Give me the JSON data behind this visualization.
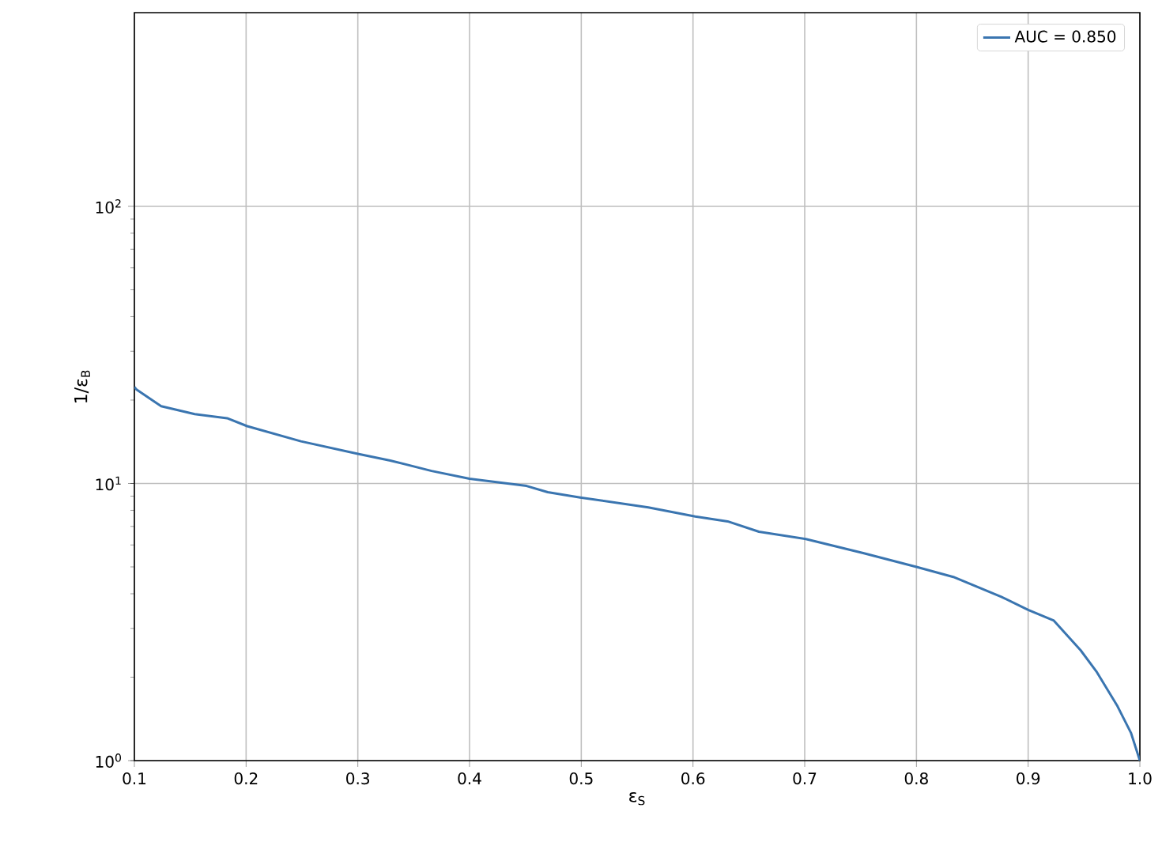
{
  "chart_data": {
    "type": "line",
    "xlabel": "ε$_{S}$",
    "ylabel": "1/ε$_{B}$",
    "log": "y",
    "grid": true,
    "legend": "top right",
    "xlim": [
      0.1,
      1.0
    ],
    "ylim": [
      1,
      500
    ],
    "xticks": [
      {
        "value": 0.1,
        "label": "0.1"
      },
      {
        "value": 0.2,
        "label": "0.2"
      },
      {
        "value": 0.3,
        "label": "0.3"
      },
      {
        "value": 0.4,
        "label": "0.4"
      },
      {
        "value": 0.5,
        "label": "0.5"
      },
      {
        "value": 0.6,
        "label": "0.6"
      },
      {
        "value": 0.7,
        "label": "0.7"
      },
      {
        "value": 0.8,
        "label": "0.8"
      },
      {
        "value": 0.9,
        "label": "0.9"
      },
      {
        "value": 1.0,
        "label": "1.0"
      }
    ],
    "yticks": [
      {
        "value": 1,
        "label": "10$^{0}$"
      },
      {
        "value": 10,
        "label": "10$^{1}$"
      },
      {
        "value": 100,
        "label": "10$^{2}$"
      }
    ],
    "series": [
      {
        "name": "AUC = 0.850",
        "color": "#3a75b0",
        "line_style": "solid",
        "x": [
          0.1,
          0.102,
          0.124,
          0.154,
          0.183,
          0.201,
          0.249,
          0.3,
          0.329,
          0.366,
          0.4,
          0.451,
          0.47,
          0.499,
          0.56,
          0.602,
          0.631,
          0.659,
          0.701,
          0.753,
          0.8,
          0.833,
          0.876,
          0.9,
          0.923,
          0.947,
          0.961,
          0.98,
          0.992,
          1.0
        ],
        "values": [
          22.3,
          21.8,
          19.0,
          17.8,
          17.2,
          16.1,
          14.2,
          12.8,
          12.1,
          11.1,
          10.4,
          9.8,
          9.3,
          8.9,
          8.2,
          7.6,
          7.3,
          6.7,
          6.3,
          5.6,
          5.0,
          4.6,
          3.9,
          3.5,
          3.2,
          2.5,
          2.1,
          1.57,
          1.26,
          1.0
        ]
      }
    ]
  }
}
